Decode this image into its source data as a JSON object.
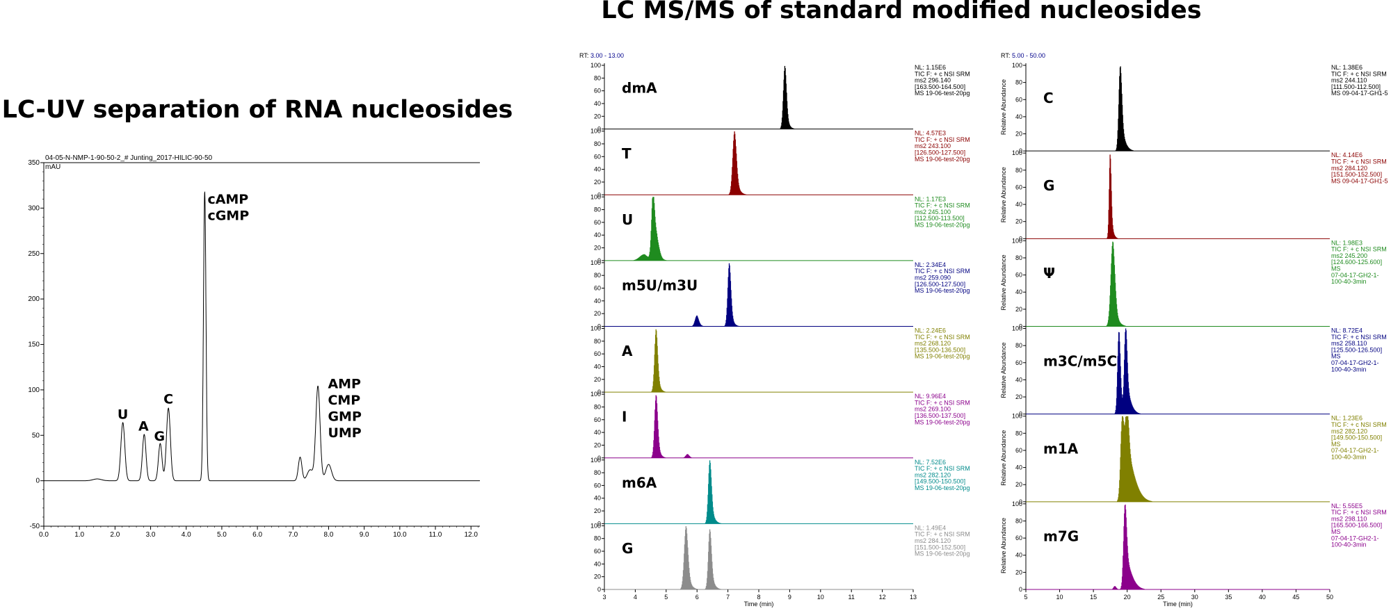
{
  "left_title": "LC-UV separation of RNA nucleosides",
  "right_title": "LC MS/MS of standard modified nucleosides",
  "chart_data": [
    {
      "type": "line",
      "header": "04-05-N-NMP-1-90-50-2_# Junting_2017-HILIC-90-50",
      "ylabel": "mAU",
      "xlim": [
        0,
        12.25
      ],
      "ylim": [
        -50,
        350
      ],
      "x_ticks": [
        "0.0",
        "1.0",
        "2.0",
        "3.0",
        "4.0",
        "5.0",
        "6.0",
        "7.0",
        "8.0",
        "9.0",
        "10.0",
        "11.0",
        "12.0"
      ],
      "y_ticks": [
        "-50",
        "0",
        "50",
        "100",
        "150",
        "200",
        "250",
        "300",
        "350"
      ],
      "baseline": 0,
      "peaks": [
        {
          "x": 1.5,
          "height": 2,
          "width": 0.12
        },
        {
          "x": 2.22,
          "height": 64,
          "width": 0.055
        },
        {
          "x": 2.82,
          "height": 51,
          "width": 0.05
        },
        {
          "x": 3.27,
          "height": 41,
          "width": 0.05
        },
        {
          "x": 3.5,
          "height": 80,
          "width": 0.055
        },
        {
          "x": 4.52,
          "height": 318,
          "width": 0.035
        },
        {
          "x": 7.2,
          "height": 26,
          "width": 0.05
        },
        {
          "x": 7.48,
          "height": 12,
          "width": 0.08
        },
        {
          "x": 7.7,
          "height": 104,
          "width": 0.06
        },
        {
          "x": 8.0,
          "height": 18,
          "width": 0.08
        }
      ],
      "annotations": [
        {
          "text": "U",
          "x": 2.22,
          "y": 68
        },
        {
          "text": "A",
          "x": 2.8,
          "y": 55
        },
        {
          "text": "G",
          "x": 3.25,
          "y": 44
        },
        {
          "text": "C",
          "x": 3.5,
          "y": 85
        },
        {
          "text": "cAMP",
          "x": 4.6,
          "y": 305
        },
        {
          "text": "cGMP",
          "x": 4.6,
          "y": 287
        },
        {
          "text": "AMP",
          "x": 7.98,
          "y": 102
        },
        {
          "text": "CMP",
          "x": 7.98,
          "y": 84
        },
        {
          "text": "GMP",
          "x": 7.98,
          "y": 66
        },
        {
          "text": "UMP",
          "x": 7.98,
          "y": 48
        }
      ]
    },
    {
      "type": "stacked-chromatograms",
      "rt_label": "RT:",
      "rt_range": "3.00 - 13.00",
      "xlabel": "Time (min)",
      "xlim": [
        3,
        13
      ],
      "x_ticks": [
        "3",
        "4",
        "5",
        "6",
        "7",
        "8",
        "9",
        "10",
        "11",
        "12",
        "13"
      ],
      "y_ticks": [
        "0",
        "20",
        "40",
        "60",
        "80",
        "100"
      ],
      "panels": [
        {
          "label": "dmA",
          "color": "#000000",
          "info": [
            "NL: 1.15E6",
            "TIC F: + c NSI SRM",
            "ms2 296.140",
            "[163.500-164.500]",
            "MS 19-06-test-20pg"
          ],
          "peaks": [
            {
              "x": 8.85,
              "h": 100,
              "w": 0.05,
              "tail": 0.08
            }
          ]
        },
        {
          "label": "T",
          "color": "#8b0000",
          "info": [
            "NL: 4.57E3",
            "TIC F: + c NSI SRM",
            "ms2 243.100",
            "[126.500-127.500]",
            "MS 19-06-test-20pg"
          ],
          "peaks": [
            {
              "x": 7.22,
              "h": 100,
              "w": 0.06,
              "tail": 0.1
            }
          ]
        },
        {
          "label": "U",
          "color": "#1f8b1f",
          "info": [
            "NL: 1.17E3",
            "TIC F: + c NSI SRM",
            "ms2 245.100",
            "[112.500-113.500]",
            "MS 19-06-test-20pg"
          ],
          "peaks": [
            {
              "x": 4.58,
              "h": 100,
              "w": 0.05,
              "tail": 0.08
            },
            {
              "x": 4.7,
              "h": 30,
              "w": 0.08,
              "tail": 0.1
            },
            {
              "x": 4.3,
              "h": 10,
              "w": 0.15,
              "tail": 0.1
            }
          ]
        },
        {
          "label": "m5U/m3U",
          "color": "#000080",
          "info": [
            "NL: 2.34E4",
            "TIC F: + c NSI SRM",
            "ms2 259.090",
            "[126.500-127.500]",
            "MS 19-06-test-20pg"
          ],
          "peaks": [
            {
              "x": 7.05,
              "h": 100,
              "w": 0.05,
              "tail": 0.08
            },
            {
              "x": 6.0,
              "h": 17,
              "w": 0.06,
              "tail": 0.08
            }
          ]
        },
        {
          "label": "A",
          "color": "#808000",
          "info": [
            "NL: 2.24E6",
            "TIC F: + c NSI SRM",
            "ms2 268.120",
            "[135.500-136.500]",
            "MS 19-06-test-20pg"
          ],
          "peaks": [
            {
              "x": 4.68,
              "h": 100,
              "w": 0.05,
              "tail": 0.08
            }
          ]
        },
        {
          "label": "I",
          "color": "#8b008b",
          "info": [
            "NL: 9.96E4",
            "TIC F: + c NSI SRM",
            "ms2 269.100",
            "[136.500-137.500]",
            "MS 19-06-test-20pg"
          ],
          "peaks": [
            {
              "x": 4.68,
              "h": 100,
              "w": 0.05,
              "tail": 0.08
            },
            {
              "x": 5.7,
              "h": 6,
              "w": 0.06,
              "tail": 0.05
            }
          ]
        },
        {
          "label": "m6A",
          "color": "#008b8b",
          "info": [
            "NL: 7.52E6",
            "TIC F: + c NSI SRM",
            "ms2 282.120",
            "[149.500-150.500]",
            "MS 19-06-test-20pg"
          ],
          "peaks": [
            {
              "x": 6.42,
              "h": 100,
              "w": 0.05,
              "tail": 0.1
            }
          ]
        },
        {
          "label": "G",
          "color": "#8c8c8c",
          "info": [
            "NL: 1.49E4",
            "TIC F: + c NSI SRM",
            "ms2 284.120",
            "[151.500-152.500]",
            "MS 19-06-test-20pg"
          ],
          "peaks": [
            {
              "x": 5.65,
              "h": 100,
              "w": 0.06,
              "tail": 0.1
            },
            {
              "x": 6.42,
              "h": 95,
              "w": 0.05,
              "tail": 0.1
            }
          ]
        }
      ]
    },
    {
      "type": "stacked-chromatograms",
      "rt_label": "RT:",
      "rt_range": "5.00 - 50.00",
      "xlabel": "Time (min)",
      "ylabel": "Relative Abundance",
      "xlim": [
        5,
        50
      ],
      "x_ticks": [
        "5",
        "10",
        "15",
        "20",
        "25",
        "30",
        "35",
        "40",
        "45",
        "50"
      ],
      "y_ticks": [
        "0",
        "20",
        "40",
        "60",
        "80",
        "100"
      ],
      "panels": [
        {
          "label": "C",
          "color": "#000000",
          "info": [
            "NL: 1.38E6",
            "TIC F: + c NSI SRM",
            "ms2 244.110",
            "[111.500-112.500]",
            "MS 09-04-17-GH1-5"
          ],
          "peaks": [
            {
              "x": 19.0,
              "h": 100,
              "w": 0.22,
              "tail": 0.6
            }
          ]
        },
        {
          "label": "G",
          "color": "#8b0000",
          "info": [
            "NL: 4.14E6",
            "TIC F: + c NSI SRM",
            "ms2 284.120",
            "[151.500-152.500]",
            "MS 09-04-17-GH1-5"
          ],
          "peaks": [
            {
              "x": 17.5,
              "h": 100,
              "w": 0.15,
              "tail": 0.3
            }
          ]
        },
        {
          "label": "Ψ",
          "color": "#1f8b1f",
          "info": [
            "NL: 1.98E3",
            "TIC F: + c NSI SRM",
            "ms2 245.200",
            "[124.600-125.600]",
            "MS",
            "07-04-17-GH2-1-",
            "100-40-3min"
          ],
          "peaks": [
            {
              "x": 17.9,
              "h": 100,
              "w": 0.3,
              "tail": 0.5
            }
          ]
        },
        {
          "label": "m3C/m5C",
          "color": "#000080",
          "info": [
            "NL: 8.72E4",
            "TIC F: + c NSI SRM",
            "ms2 258.110",
            "[125.500-126.500]",
            "MS",
            "07-04-17-GH2-1-",
            "100-40-3min"
          ],
          "peaks": [
            {
              "x": 18.8,
              "h": 98,
              "w": 0.2,
              "tail": 0.4
            },
            {
              "x": 19.8,
              "h": 100,
              "w": 0.2,
              "tail": 0.8
            }
          ]
        },
        {
          "label": "m1A",
          "color": "#808000",
          "info": [
            "NL: 1.23E6",
            "TIC F: + c NSI SRM",
            "ms2 282.120",
            "[149.500-150.500]",
            "MS",
            "07-04-17-GH2-1-",
            "100-40-3min"
          ],
          "peaks": [
            {
              "x": 19.3,
              "h": 100,
              "w": 0.25,
              "tail": 2.5
            },
            {
              "x": 20.0,
              "h": 80,
              "w": 0.25,
              "tail": 3.0
            }
          ]
        },
        {
          "label": "m7G",
          "color": "#8b008b",
          "info": [
            "NL: 5.55E5",
            "TIC F: + c NSI SRM",
            "ms2 298.110",
            "[165.500-166.500]",
            "MS",
            "07-04-17-GH2-1-",
            "100-40-3min"
          ],
          "peaks": [
            {
              "x": 19.7,
              "h": 100,
              "w": 0.22,
              "tail": 1.5
            },
            {
              "x": 18.2,
              "h": 4,
              "w": 0.2,
              "tail": 0.2
            }
          ]
        }
      ]
    }
  ]
}
